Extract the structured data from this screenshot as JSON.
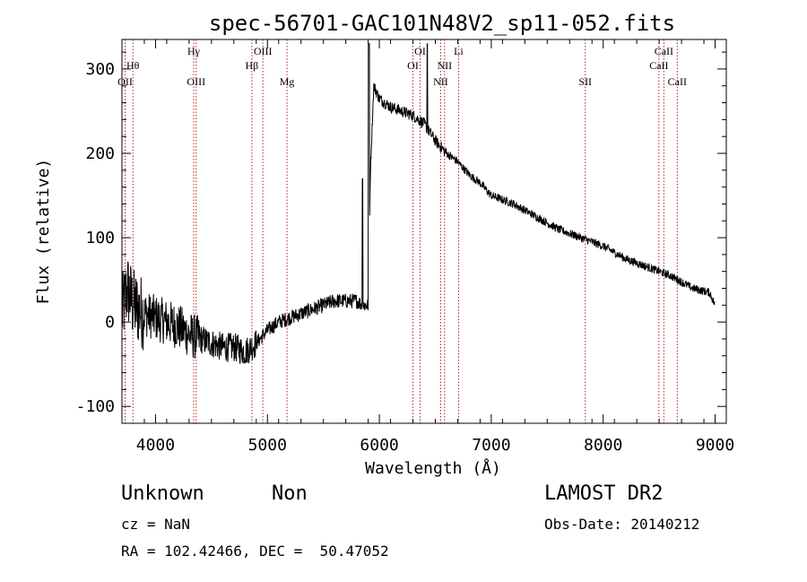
{
  "chart_data": {
    "type": "line",
    "title": "spec-56701-GAC101N48V2_sp11-052.fits",
    "xlabel": "Wavelength (Å)",
    "ylabel": "Flux (relative)",
    "xlim": [
      3700,
      9100
    ],
    "ylim": [
      -120,
      335
    ],
    "xticks": [
      4000,
      5000,
      6000,
      7000,
      8000,
      9000
    ],
    "yticks": [
      -100,
      0,
      100,
      200,
      300
    ],
    "grid": false,
    "series_color": "#000000",
    "line_color": "#b22222",
    "spectrum_keypoints": [
      [
        3700,
        10
      ],
      [
        3750,
        40
      ],
      [
        3800,
        20
      ],
      [
        3900,
        10
      ],
      [
        4000,
        5
      ],
      [
        4100,
        0
      ],
      [
        4200,
        -5
      ],
      [
        4300,
        -15
      ],
      [
        4400,
        -20
      ],
      [
        4500,
        -25
      ],
      [
        4600,
        -30
      ],
      [
        4700,
        -30
      ],
      [
        4800,
        -35
      ],
      [
        4900,
        -25
      ],
      [
        5000,
        -10
      ],
      [
        5100,
        0
      ],
      [
        5200,
        5
      ],
      [
        5300,
        10
      ],
      [
        5400,
        15
      ],
      [
        5500,
        20
      ],
      [
        5600,
        25
      ],
      [
        5700,
        25
      ],
      [
        5800,
        25
      ],
      [
        5850,
        20
      ],
      [
        5900,
        20
      ],
      [
        5920,
        180
      ],
      [
        5950,
        280
      ],
      [
        6000,
        265
      ],
      [
        6100,
        255
      ],
      [
        6200,
        250
      ],
      [
        6300,
        245
      ],
      [
        6400,
        235
      ],
      [
        6500,
        215
      ],
      [
        6600,
        200
      ],
      [
        6700,
        190
      ],
      [
        6800,
        175
      ],
      [
        6900,
        165
      ],
      [
        7000,
        150
      ],
      [
        7200,
        140
      ],
      [
        7400,
        125
      ],
      [
        7600,
        110
      ],
      [
        7800,
        100
      ],
      [
        8000,
        90
      ],
      [
        8200,
        75
      ],
      [
        8400,
        65
      ],
      [
        8600,
        55
      ],
      [
        8800,
        40
      ],
      [
        8950,
        35
      ],
      [
        9000,
        20
      ]
    ],
    "spectral_lines": [
      {
        "wave": 3728,
        "label": "OII",
        "row": 3
      },
      {
        "wave": 3798,
        "label": "Hθ",
        "row": 2
      },
      {
        "wave": 4341,
        "label": "Hγ",
        "row": 1
      },
      {
        "wave": 4363,
        "label": "OIII",
        "row": 3
      },
      {
        "wave": 4861,
        "label": "Hβ",
        "row": 2
      },
      {
        "wave": 4959,
        "label": "OIII",
        "row": 1
      },
      {
        "wave": 5175,
        "label": "Mg",
        "row": 3
      },
      {
        "wave": 6300,
        "label": "OI",
        "row": 2
      },
      {
        "wave": 6364,
        "label": "OI",
        "row": 1
      },
      {
        "wave": 6548,
        "label": "NII",
        "row": 3
      },
      {
        "wave": 6583,
        "label": "NII",
        "row": 2
      },
      {
        "wave": 6708,
        "label": "Li",
        "row": 1
      },
      {
        "wave": 7840,
        "label": "SII",
        "row": 3
      },
      {
        "wave": 8498,
        "label": "CaII",
        "row": 2
      },
      {
        "wave": 8542,
        "label": "CaII",
        "row": 1
      },
      {
        "wave": 8662,
        "label": "CaII",
        "row": 3
      }
    ]
  },
  "info": {
    "classification": "Unknown",
    "subclass": "Non",
    "survey": "LAMOST DR2",
    "cz": "cz = NaN",
    "obs_date": "Obs-Date: 20140212",
    "coords": "RA = 102.42466, DEC =  50.47052"
  }
}
